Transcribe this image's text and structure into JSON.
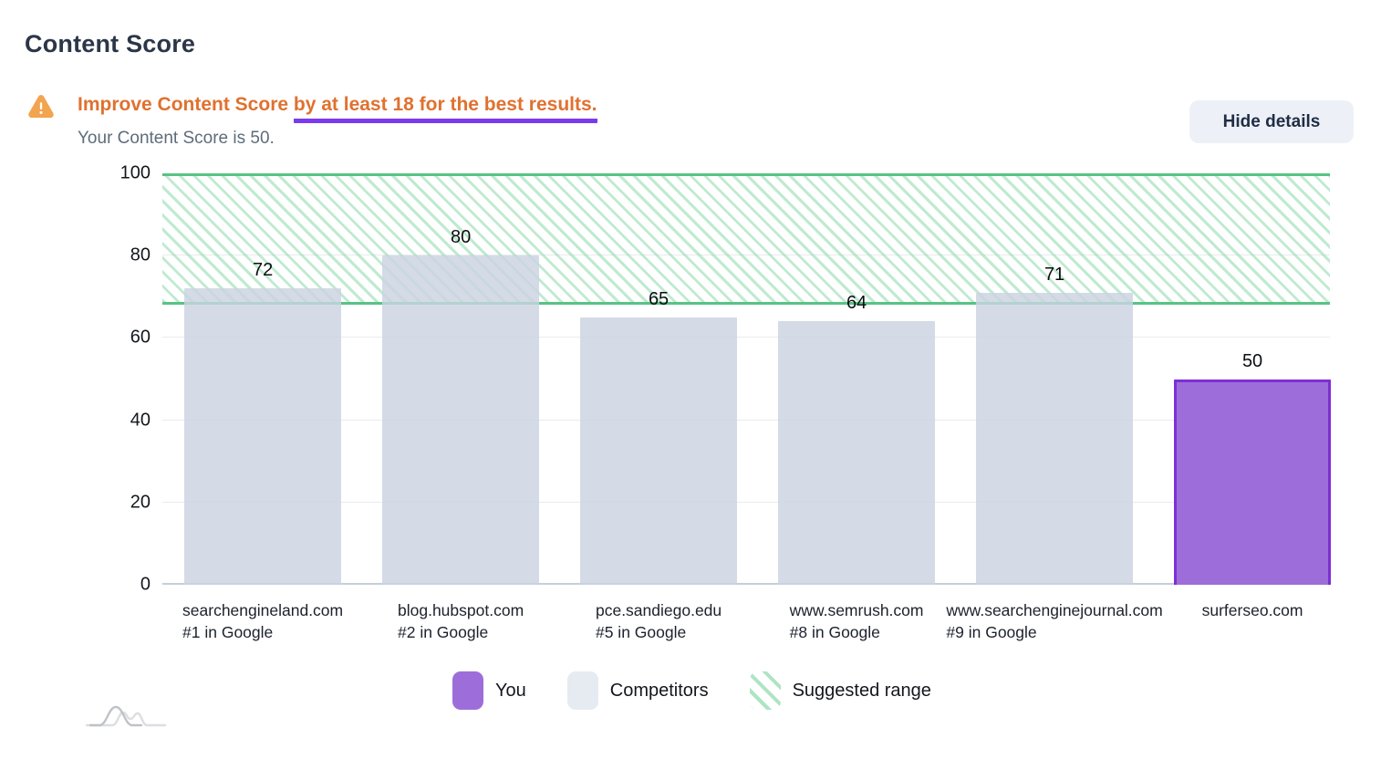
{
  "header": {
    "title": "Content Score",
    "warning": {
      "icon": "warning-triangle-icon",
      "message_plain": "Improve Content Score ",
      "message_underlined": "by at least 18 for the best results.",
      "subtext": "Your Content Score is 50.",
      "text_color": "#e0712f",
      "underline_color": "#7b3bec"
    },
    "hide_details_label": "Hide details"
  },
  "chart_data": {
    "type": "bar",
    "ylim": [
      0,
      100
    ],
    "yticks": [
      0,
      20,
      40,
      60,
      80,
      100
    ],
    "grid": true,
    "legend_position": "bottom",
    "suggested_range": {
      "min": 68,
      "max": 100,
      "label": "Suggested range"
    },
    "categories": [
      "searchengineland.com",
      "blog.hubspot.com",
      "pce.sandiego.edu",
      "www.semrush.com",
      "www.searchenginejournal.com",
      "surferseo.com"
    ],
    "bars": [
      {
        "label": "searchengineland.com",
        "sublabel": "#1 in Google",
        "value": 72,
        "series": "Competitors"
      },
      {
        "label": "blog.hubspot.com",
        "sublabel": "#2 in Google",
        "value": 80,
        "series": "Competitors"
      },
      {
        "label": "pce.sandiego.edu",
        "sublabel": "#5 in Google",
        "value": 65,
        "series": "Competitors"
      },
      {
        "label": "www.semrush.com",
        "sublabel": "#8 in Google",
        "value": 64,
        "series": "Competitors"
      },
      {
        "label": "www.searchenginejournal.com",
        "sublabel": "#9 in Google",
        "value": 71,
        "series": "Competitors"
      },
      {
        "label": "surferseo.com",
        "sublabel": "",
        "value": 50,
        "series": "You"
      }
    ],
    "colors": {
      "you_fill": "#9d6ed9",
      "you_border": "#7d2fd4",
      "competitor_fill": "#d5dce6",
      "range_line": "#57c384",
      "range_hatch": "#8cd8aa"
    }
  },
  "legend": {
    "items": [
      {
        "label": "You",
        "type": "you"
      },
      {
        "label": "Competitors",
        "type": "competitors"
      },
      {
        "label": "Suggested range",
        "type": "range"
      }
    ]
  }
}
